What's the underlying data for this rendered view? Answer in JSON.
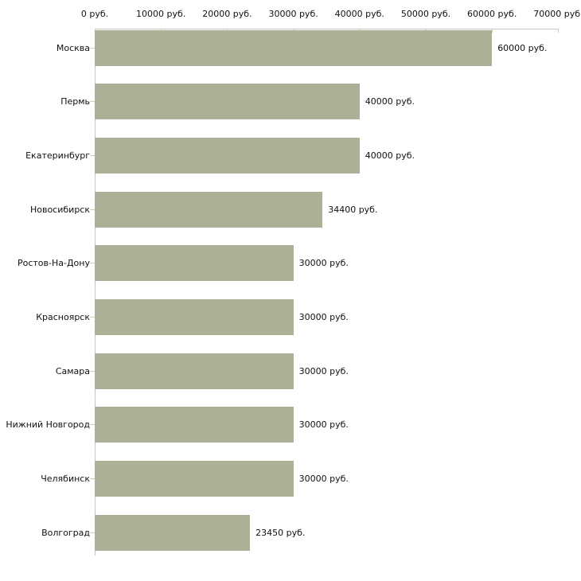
{
  "chart_data": {
    "type": "bar",
    "orientation": "horizontal",
    "categories": [
      "Москва",
      "Пермь",
      "Екатеринбург",
      "Новосибирск",
      "Ростов-На-Дону",
      "Красноярск",
      "Самара",
      "Нижний Новгород",
      "Челябинск",
      "Волгоград"
    ],
    "values": [
      60000,
      40000,
      40000,
      34400,
      30000,
      30000,
      30000,
      30000,
      30000,
      23450
    ],
    "value_labels": [
      "60000 руб.",
      "40000 руб.",
      "40000 руб.",
      "34400 руб.",
      "30000 руб.",
      "30000 руб.",
      "30000 руб.",
      "30000 руб.",
      "30000 руб.",
      "23450 руб."
    ],
    "x_axis": {
      "position": "top",
      "min": 0,
      "max": 70000,
      "tick_step": 10000,
      "ticks": [
        0,
        10000,
        20000,
        30000,
        40000,
        50000,
        60000,
        70000
      ],
      "tick_labels": [
        "0 руб.",
        "10000 руб.",
        "20000 руб.",
        "30000 руб.",
        "40000 руб.",
        "50000 руб.",
        "60000 руб.",
        "70000 руб."
      ]
    },
    "grid": false,
    "legend": null,
    "colors": {
      "bar": "#abb197",
      "axis_line": "#c6c6c6",
      "tick_mark": "#d0d0a0",
      "text": "#111111",
      "background": "#ffffff"
    }
  }
}
